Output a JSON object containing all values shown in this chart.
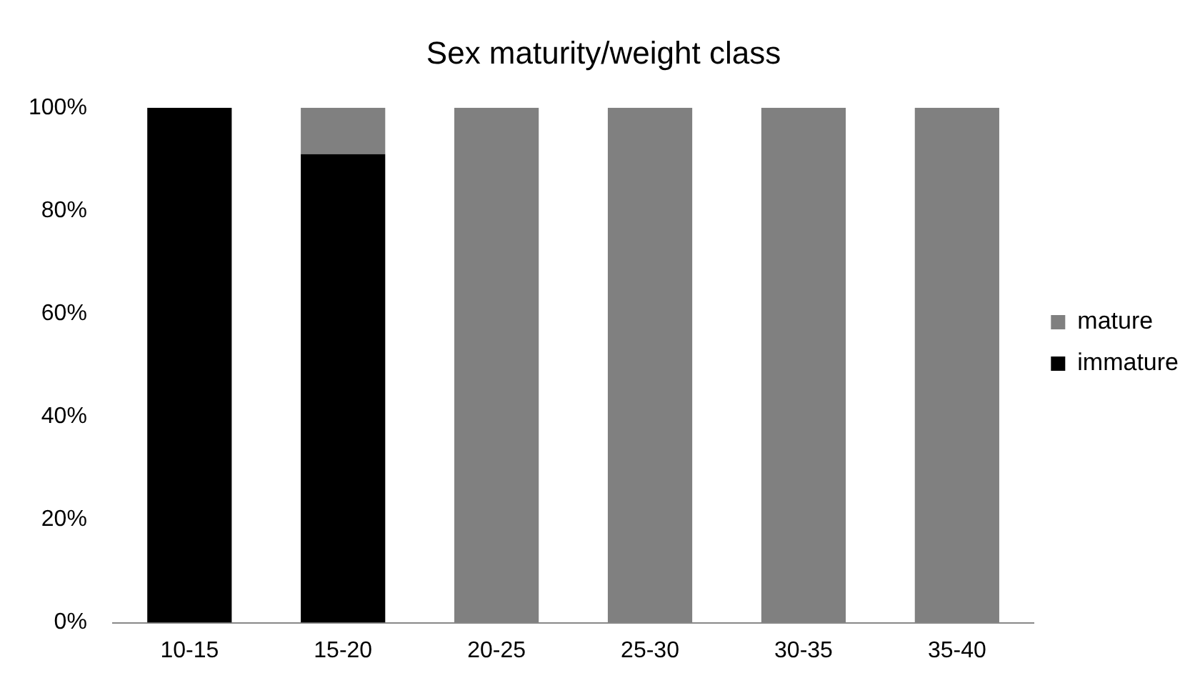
{
  "chart_data": {
    "type": "bar",
    "title": "Sex maturity/weight class",
    "stacked": true,
    "categories": [
      "10-15",
      "15-20",
      "20-25",
      "25-30",
      "30-35",
      "35-40"
    ],
    "series": [
      {
        "name": "immature",
        "color": "#000000",
        "values": [
          100,
          91,
          0,
          0,
          0,
          0
        ]
      },
      {
        "name": "mature",
        "color": "#808080",
        "values": [
          0,
          9,
          100,
          100,
          100,
          100
        ]
      }
    ],
    "ylim": [
      0,
      100
    ],
    "yticks": [
      {
        "value": 0,
        "label": "0%"
      },
      {
        "value": 20,
        "label": "20%"
      },
      {
        "value": 40,
        "label": "40%"
      },
      {
        "value": 60,
        "label": "60%"
      },
      {
        "value": 80,
        "label": "80%"
      },
      {
        "value": 100,
        "label": "100%"
      }
    ],
    "grid": false,
    "legend": "right"
  }
}
